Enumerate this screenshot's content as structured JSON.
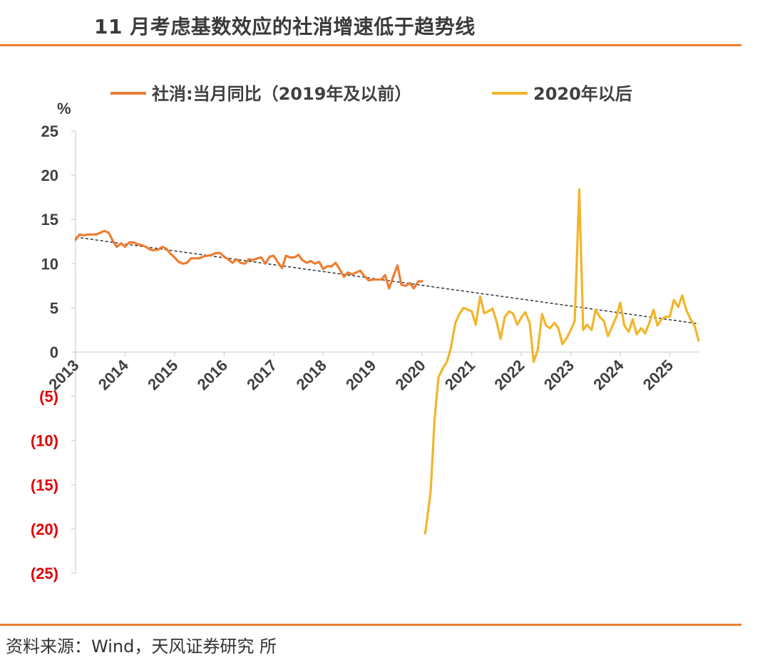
{
  "header": {
    "title": "11 月考虑基数效应的社消增速低于趋势线"
  },
  "footer": {
    "source": "资料来源：Wind，天风证券研究 所"
  },
  "chart_data": {
    "type": "line",
    "title": "11 月考虑基数效应的社消增速低于趋势线",
    "ylabel": "%",
    "ylim": [
      -25,
      25
    ],
    "y_ticks": [
      {
        "value": 25,
        "label": "25"
      },
      {
        "value": 20,
        "label": "20"
      },
      {
        "value": 15,
        "label": "15"
      },
      {
        "value": 10,
        "label": "10"
      },
      {
        "value": 5,
        "label": "5"
      },
      {
        "value": 0,
        "label": "0"
      },
      {
        "value": -5,
        "label": "(5)"
      },
      {
        "value": -10,
        "label": "(10)"
      },
      {
        "value": -15,
        "label": "(15)"
      },
      {
        "value": -20,
        "label": "(20)"
      },
      {
        "value": -25,
        "label": "(25)"
      }
    ],
    "x_range": [
      2013.0,
      2025.583
    ],
    "x_ticks": [
      {
        "value": 2013,
        "label": "2013"
      },
      {
        "value": 2014,
        "label": "2014"
      },
      {
        "value": 2015,
        "label": "2015"
      },
      {
        "value": 2016,
        "label": "2016"
      },
      {
        "value": 2017,
        "label": "2017"
      },
      {
        "value": 2018,
        "label": "2018"
      },
      {
        "value": 2019,
        "label": "2019"
      },
      {
        "value": 2020,
        "label": "2020"
      },
      {
        "value": 2021,
        "label": "2021"
      },
      {
        "value": 2022,
        "label": "2022"
      },
      {
        "value": 2023,
        "label": "2023"
      },
      {
        "value": 2024,
        "label": "2024"
      },
      {
        "value": 2025,
        "label": "2025"
      }
    ],
    "negative_label_color": "#E00000",
    "legend_position": "top",
    "grid": false,
    "series": [
      {
        "name": "社消:当月同比（2019年及以前）",
        "color": "#ED7D31",
        "points": [
          [
            2013.0,
            12.7
          ],
          [
            2013.08,
            13.3
          ],
          [
            2013.17,
            13.2
          ],
          [
            2013.25,
            13.3
          ],
          [
            2013.33,
            13.3
          ],
          [
            2013.42,
            13.3
          ],
          [
            2013.5,
            13.5
          ],
          [
            2013.58,
            13.7
          ],
          [
            2013.67,
            13.5
          ],
          [
            2013.75,
            12.6
          ],
          [
            2013.83,
            11.9
          ],
          [
            2013.92,
            12.3
          ],
          [
            2014.0,
            11.9
          ],
          [
            2014.08,
            12.4
          ],
          [
            2014.17,
            12.4
          ],
          [
            2014.25,
            12.2
          ],
          [
            2014.33,
            12.1
          ],
          [
            2014.42,
            11.9
          ],
          [
            2014.5,
            11.6
          ],
          [
            2014.58,
            11.5
          ],
          [
            2014.67,
            11.6
          ],
          [
            2014.75,
            11.9
          ],
          [
            2014.83,
            11.7
          ],
          [
            2014.92,
            11.1
          ],
          [
            2015.0,
            10.7
          ],
          [
            2015.08,
            10.2
          ],
          [
            2015.17,
            10.0
          ],
          [
            2015.25,
            10.1
          ],
          [
            2015.33,
            10.6
          ],
          [
            2015.42,
            10.6
          ],
          [
            2015.5,
            10.6
          ],
          [
            2015.58,
            10.8
          ],
          [
            2015.67,
            10.9
          ],
          [
            2015.75,
            11.0
          ],
          [
            2015.83,
            11.2
          ],
          [
            2015.92,
            11.2
          ],
          [
            2016.0,
            10.8
          ],
          [
            2016.08,
            10.5
          ],
          [
            2016.17,
            10.1
          ],
          [
            2016.25,
            10.5
          ],
          [
            2016.33,
            10.1
          ],
          [
            2016.42,
            10.0
          ],
          [
            2016.5,
            10.5
          ],
          [
            2016.58,
            10.4
          ],
          [
            2016.67,
            10.6
          ],
          [
            2016.75,
            10.7
          ],
          [
            2016.83,
            10.0
          ],
          [
            2016.92,
            10.8
          ],
          [
            2017.0,
            10.9
          ],
          [
            2017.08,
            10.2
          ],
          [
            2017.17,
            9.5
          ],
          [
            2017.25,
            10.9
          ],
          [
            2017.33,
            10.7
          ],
          [
            2017.42,
            10.7
          ],
          [
            2017.5,
            11.0
          ],
          [
            2017.58,
            10.4
          ],
          [
            2017.67,
            10.1
          ],
          [
            2017.75,
            10.3
          ],
          [
            2017.83,
            10.0
          ],
          [
            2017.92,
            10.2
          ],
          [
            2018.0,
            9.4
          ],
          [
            2018.08,
            9.7
          ],
          [
            2018.17,
            9.7
          ],
          [
            2018.25,
            10.1
          ],
          [
            2018.33,
            9.4
          ],
          [
            2018.42,
            8.5
          ],
          [
            2018.5,
            9.0
          ],
          [
            2018.58,
            8.8
          ],
          [
            2018.67,
            9.0
          ],
          [
            2018.75,
            9.2
          ],
          [
            2018.83,
            8.6
          ],
          [
            2018.92,
            8.1
          ],
          [
            2019.0,
            8.2
          ],
          [
            2019.08,
            8.2
          ],
          [
            2019.17,
            8.2
          ],
          [
            2019.25,
            8.7
          ],
          [
            2019.33,
            7.2
          ],
          [
            2019.42,
            8.6
          ],
          [
            2019.5,
            9.8
          ],
          [
            2019.58,
            7.6
          ],
          [
            2019.67,
            7.5
          ],
          [
            2019.75,
            7.8
          ],
          [
            2019.83,
            7.2
          ],
          [
            2019.92,
            8.0
          ],
          [
            2020.0,
            8.0
          ]
        ]
      },
      {
        "name": "2020年以后",
        "color": "#F2B52A",
        "points": [
          [
            2020.06,
            -20.5
          ],
          [
            2020.17,
            -15.8
          ],
          [
            2020.25,
            -7.5
          ],
          [
            2020.33,
            -2.8
          ],
          [
            2020.42,
            -1.8
          ],
          [
            2020.5,
            -1.1
          ],
          [
            2020.58,
            0.5
          ],
          [
            2020.67,
            3.3
          ],
          [
            2020.75,
            4.3
          ],
          [
            2020.83,
            5.0
          ],
          [
            2020.92,
            4.8
          ],
          [
            2021.0,
            4.6
          ],
          [
            2021.08,
            3.1
          ],
          [
            2021.17,
            6.3
          ],
          [
            2021.25,
            4.4
          ],
          [
            2021.33,
            4.6
          ],
          [
            2021.42,
            4.9
          ],
          [
            2021.5,
            3.5
          ],
          [
            2021.58,
            1.5
          ],
          [
            2021.67,
            4.0
          ],
          [
            2021.75,
            4.6
          ],
          [
            2021.83,
            4.4
          ],
          [
            2021.92,
            3.1
          ],
          [
            2022.0,
            3.9
          ],
          [
            2022.08,
            4.5
          ],
          [
            2022.17,
            3.3
          ],
          [
            2022.25,
            -1.1
          ],
          [
            2022.33,
            0.2
          ],
          [
            2022.42,
            4.3
          ],
          [
            2022.5,
            3.0
          ],
          [
            2022.58,
            2.7
          ],
          [
            2022.67,
            3.3
          ],
          [
            2022.75,
            2.7
          ],
          [
            2022.83,
            0.9
          ],
          [
            2022.92,
            1.6
          ],
          [
            2023.0,
            2.5
          ],
          [
            2023.08,
            3.5
          ],
          [
            2023.17,
            18.4
          ],
          [
            2023.25,
            2.5
          ],
          [
            2023.33,
            3.1
          ],
          [
            2023.42,
            2.5
          ],
          [
            2023.5,
            4.8
          ],
          [
            2023.58,
            4.0
          ],
          [
            2023.67,
            3.5
          ],
          [
            2023.75,
            1.8
          ],
          [
            2023.83,
            2.8
          ],
          [
            2023.92,
            4.0
          ],
          [
            2024.0,
            5.6
          ],
          [
            2024.08,
            3.0
          ],
          [
            2024.17,
            2.3
          ],
          [
            2024.25,
            3.7
          ],
          [
            2024.33,
            2.0
          ],
          [
            2024.42,
            2.7
          ],
          [
            2024.5,
            2.1
          ],
          [
            2024.58,
            3.2
          ],
          [
            2024.67,
            4.8
          ],
          [
            2024.75,
            3.0
          ],
          [
            2024.83,
            3.7
          ],
          [
            2024.92,
            4.0
          ],
          [
            2025.0,
            4.0
          ],
          [
            2025.08,
            5.9
          ],
          [
            2025.17,
            5.1
          ],
          [
            2025.25,
            6.4
          ],
          [
            2025.33,
            4.8
          ],
          [
            2025.42,
            3.7
          ],
          [
            2025.5,
            3.0
          ],
          [
            2025.58,
            1.3
          ]
        ]
      }
    ],
    "trendline": {
      "style": "dashed",
      "color": "#333333",
      "start": [
        2013.0,
        13.0
      ],
      "end": [
        2025.583,
        3.2
      ]
    }
  }
}
